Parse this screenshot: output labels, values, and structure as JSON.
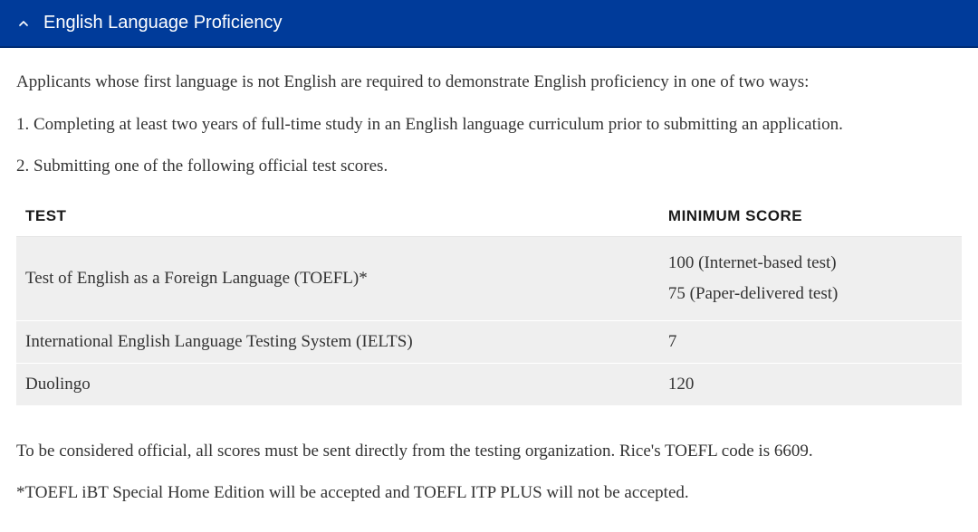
{
  "accordion": {
    "title": "English Language Proficiency",
    "expanded": true
  },
  "intro": "Applicants whose first language is not English are required to demonstrate English proficiency in one of two ways:",
  "option1": "1. Completing at least two years of full-time study in an English language curriculum prior to submitting an application.",
  "option2": "2. Submitting one of the following official test scores.",
  "table": {
    "headers": {
      "test": "TEST",
      "min": "MINIMUM SCORE"
    },
    "rows": [
      {
        "test": "Test of English as a Foreign Language (TOEFL)*",
        "score_lines": [
          "100 (Internet-based test)",
          "75 (Paper-delivered test)"
        ]
      },
      {
        "test": "International English Language Testing System (IELTS)",
        "score_lines": [
          "7"
        ]
      },
      {
        "test": "Duolingo",
        "score_lines": [
          "120"
        ]
      }
    ]
  },
  "footnote1": "To be considered official, all scores must be sent directly from the testing organization. Rice's TOEFL code is 6609.",
  "footnote2": "*TOEFL iBT Special Home Edition will be accepted and TOEFL ITP PLUS will not be accepted."
}
